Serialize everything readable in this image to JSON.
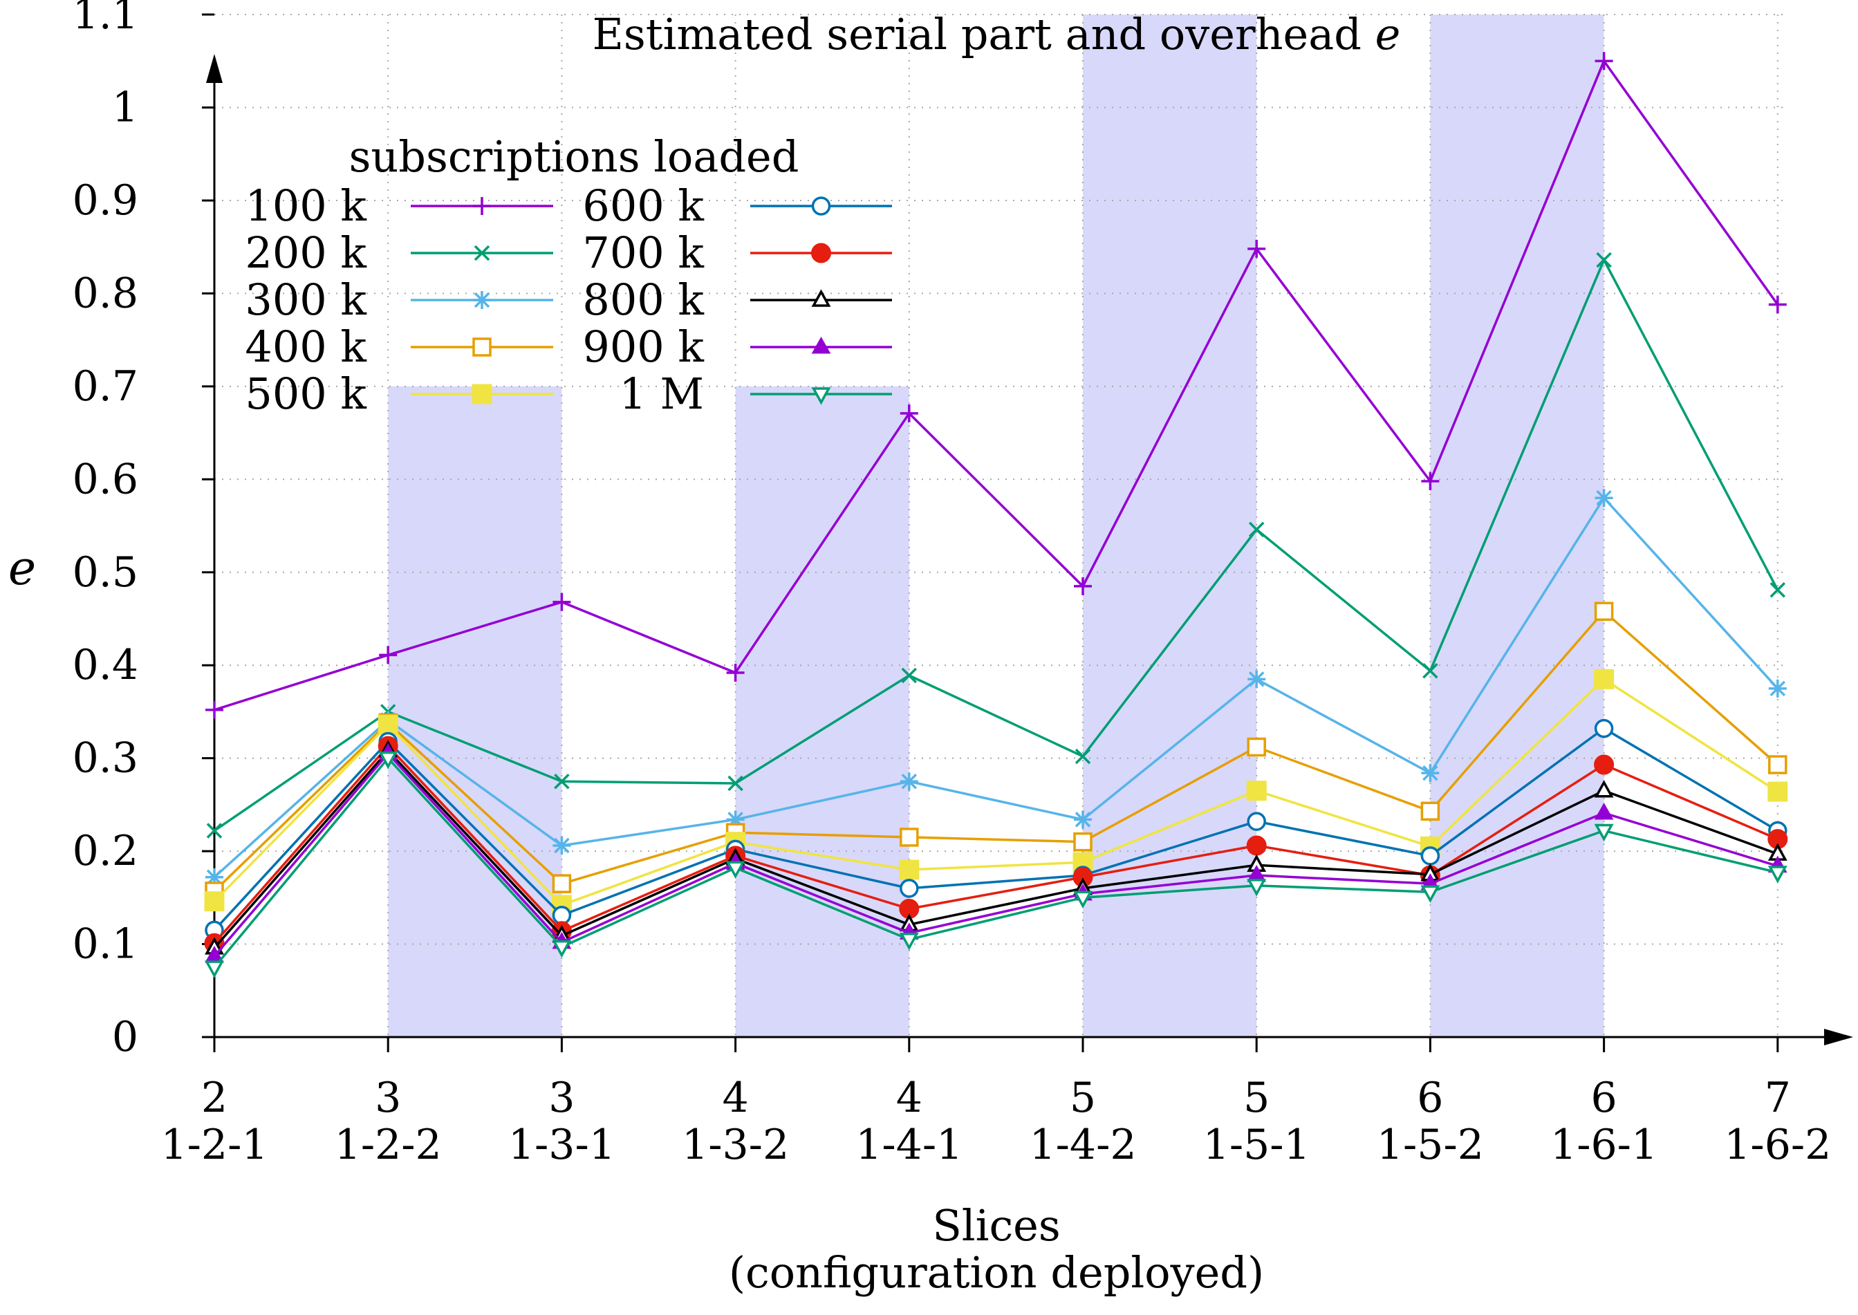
{
  "chart_data": {
    "type": "line",
    "title": "Estimated serial part and overhead",
    "title_var": "e",
    "ylabel": "e",
    "xlabel": "Slices",
    "xlabel_sub": "(configuration deployed)",
    "ylim": [
      0,
      1.1
    ],
    "yticks": [
      "0",
      "0.1",
      "0.2",
      "0.3",
      "0.4",
      "0.5",
      "0.6",
      "0.7",
      "0.8",
      "0.9",
      "1",
      "1.1"
    ],
    "grid": true,
    "legend_title": "subscriptions loaded",
    "legend_position": "top-left",
    "categories": [
      {
        "slices": "2",
        "config": "1-2-1"
      },
      {
        "slices": "3",
        "config": "1-2-2"
      },
      {
        "slices": "3",
        "config": "1-3-1"
      },
      {
        "slices": "4",
        "config": "1-3-2"
      },
      {
        "slices": "4",
        "config": "1-4-1"
      },
      {
        "slices": "5",
        "config": "1-4-2"
      },
      {
        "slices": "5",
        "config": "1-5-1"
      },
      {
        "slices": "6",
        "config": "1-5-2"
      },
      {
        "slices": "6",
        "config": "1-6-1"
      },
      {
        "slices": "7",
        "config": "1-6-2"
      }
    ],
    "shaded_regions": [
      {
        "from": 1,
        "to": 2,
        "ymax": 0.7
      },
      {
        "from": 3,
        "to": 4,
        "ymax": 0.7
      },
      {
        "from": 5,
        "to": 6,
        "ymax": 1.1
      },
      {
        "from": 7,
        "to": 8,
        "ymax": 1.1
      }
    ],
    "shade_color": "#d8d8fa",
    "series": [
      {
        "name": "100 k",
        "color": "#9400d3",
        "marker": "plus",
        "values": [
          0.352,
          0.411,
          0.468,
          0.392,
          0.671,
          0.485,
          0.848,
          0.598,
          1.05,
          0.788
        ]
      },
      {
        "name": "200 k",
        "color": "#009e73",
        "marker": "cross",
        "values": [
          0.222,
          0.35,
          0.275,
          0.273,
          0.389,
          0.302,
          0.546,
          0.394,
          0.836,
          0.481
        ]
      },
      {
        "name": "300 k",
        "color": "#56b4e9",
        "marker": "star",
        "values": [
          0.172,
          0.341,
          0.206,
          0.234,
          0.275,
          0.234,
          0.385,
          0.284,
          0.58,
          0.375
        ]
      },
      {
        "name": "400 k",
        "color": "#e69f00",
        "marker": "square-open",
        "values": [
          0.157,
          0.338,
          0.165,
          0.22,
          0.215,
          0.21,
          0.312,
          0.243,
          0.458,
          0.293
        ]
      },
      {
        "name": "500 k",
        "color": "#f0e442",
        "marker": "square-filled",
        "values": [
          0.146,
          0.336,
          0.142,
          0.21,
          0.18,
          0.188,
          0.265,
          0.205,
          0.385,
          0.264
        ]
      },
      {
        "name": "600 k",
        "color": "#0072b2",
        "marker": "circle-open",
        "values": [
          0.115,
          0.318,
          0.131,
          0.202,
          0.16,
          0.174,
          0.232,
          0.195,
          0.332,
          0.222
        ]
      },
      {
        "name": "700 k",
        "color": "#e51e10",
        "marker": "circle-filled",
        "values": [
          0.101,
          0.313,
          0.114,
          0.195,
          0.138,
          0.172,
          0.206,
          0.174,
          0.293,
          0.213
        ]
      },
      {
        "name": "800 k",
        "color": "#000000",
        "marker": "triangle-open",
        "values": [
          0.096,
          0.308,
          0.109,
          0.192,
          0.121,
          0.16,
          0.185,
          0.175,
          0.265,
          0.197
        ]
      },
      {
        "name": "900 k",
        "color": "#9400d3",
        "marker": "triangle-filled",
        "values": [
          0.087,
          0.305,
          0.102,
          0.187,
          0.112,
          0.154,
          0.174,
          0.165,
          0.241,
          0.184
        ]
      },
      {
        "name": "1 M",
        "color": "#009e73",
        "marker": "triangle-down-open",
        "values": [
          0.075,
          0.3,
          0.097,
          0.182,
          0.105,
          0.15,
          0.163,
          0.156,
          0.222,
          0.177
        ]
      }
    ]
  }
}
